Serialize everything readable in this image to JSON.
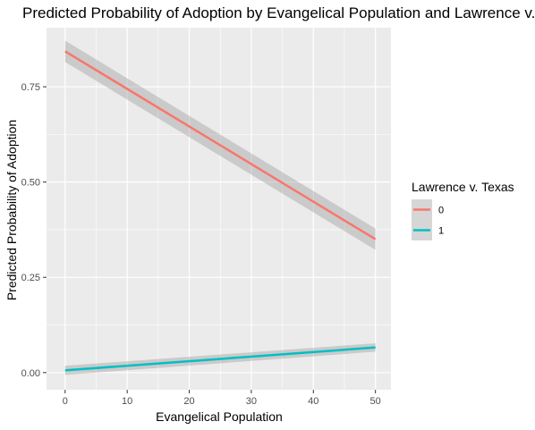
{
  "chart_data": {
    "type": "line",
    "title": "Predicted Probability of Adoption by Evangelical Population and Lawrence v. Texas",
    "xlabel": "Evangelical Population",
    "ylabel": "Predicted Probability of Adoption",
    "xlim": [
      -3,
      52.5
    ],
    "ylim": [
      -0.045,
      0.905
    ],
    "x_ticks": [
      0,
      10,
      20,
      30,
      40,
      50
    ],
    "x_tick_labels": [
      "0",
      "10",
      "20",
      "30",
      "40",
      "50"
    ],
    "y_ticks": [
      0,
      0.25,
      0.5,
      0.75
    ],
    "y_tick_labels": [
      "0.00",
      "0.25",
      "0.50",
      "0.75"
    ],
    "grid": true,
    "legend": {
      "title": "Lawrence v. Texas",
      "position": "right",
      "entries": [
        "0",
        "1"
      ]
    },
    "series": [
      {
        "name": "0",
        "color": "#F8766D",
        "x": [
          0,
          50
        ],
        "y": [
          0.843,
          0.35
        ],
        "ci_lower": [
          0.815,
          0.322
        ],
        "ci_upper": [
          0.871,
          0.378
        ]
      },
      {
        "name": "1",
        "color": "#00BFC4",
        "x": [
          0,
          50
        ],
        "y": [
          0.006,
          0.066
        ],
        "ci_lower": [
          -0.006,
          0.055
        ],
        "ci_upper": [
          0.018,
          0.077
        ]
      }
    ]
  }
}
